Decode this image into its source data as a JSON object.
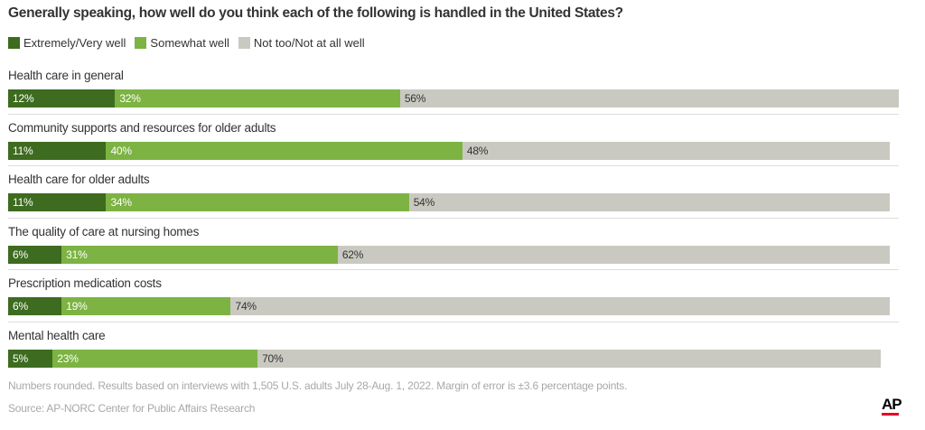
{
  "chart_data": {
    "type": "bar",
    "orientation": "horizontal",
    "stacked": true,
    "title": "Generally speaking, how well do you think each of the following is handled in the United States?",
    "legend_position": "top-left",
    "grid": false,
    "xlim": [
      0,
      100
    ],
    "categories": [
      "Health care in general",
      "Community supports and resources for older adults",
      "Health care for older adults",
      "The quality of care at nursing homes",
      "Prescription medication costs",
      "Mental health care"
    ],
    "series": [
      {
        "name": "Extremely/Very well",
        "color": "#3d6b1f",
        "values": [
          12,
          11,
          11,
          6,
          6,
          5
        ]
      },
      {
        "name": "Somewhat well",
        "color": "#7cb342",
        "values": [
          32,
          40,
          34,
          31,
          19,
          23
        ]
      },
      {
        "name": "Not too/Not at all well",
        "color": "#c9c9c1",
        "values": [
          56,
          48,
          54,
          62,
          74,
          70
        ]
      }
    ],
    "value_suffix": "%"
  },
  "footnote": "Numbers rounded. Results based on interviews with 1,505 U.S. adults July 28-Aug. 1, 2022. Margin of error is ±3.6 percentage points.",
  "source": "Source: AP-NORC Center for Public Affairs Research",
  "logo": "AP",
  "colors": {
    "logo_accent": "#e4002b",
    "text": "#333333",
    "muted_text": "#a8a8a8"
  }
}
